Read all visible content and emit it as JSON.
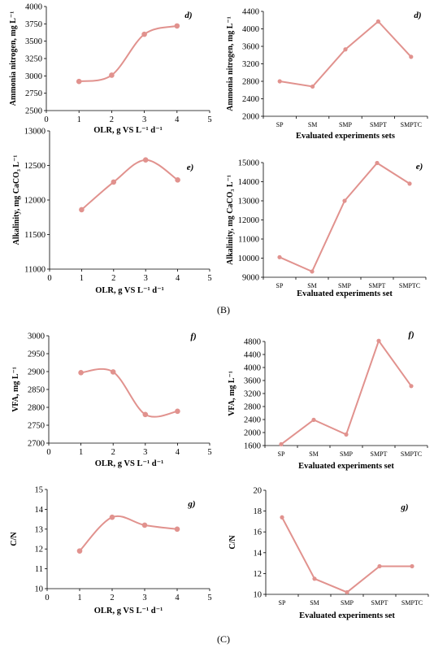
{
  "colors": {
    "series": "#e1928e",
    "axis": "#000000",
    "text": "#000000"
  },
  "section_labels": {
    "B": "(B)",
    "C": "(C)"
  },
  "chart_data": [
    {
      "id": "left-d",
      "type": "line",
      "smooth": true,
      "letter": "d)",
      "xlabel": "OLR, g VS L⁻¹ d⁻¹",
      "ylabel": "Ammonia nitrogen, mg L⁻¹",
      "x": [
        1,
        2,
        3,
        4
      ],
      "values": [
        2920,
        3010,
        3600,
        3720
      ],
      "xlim": [
        0,
        5
      ],
      "ylim": [
        2500,
        4000
      ],
      "xticks": [
        "0",
        "1",
        "2",
        "3",
        "4",
        "5"
      ],
      "yticks": [
        "2500",
        "2750",
        "3000",
        "3250",
        "3500",
        "3750",
        "4000"
      ]
    },
    {
      "id": "right-d",
      "type": "line",
      "smooth": false,
      "letter": "d)",
      "xlabel": "Evaluated experiments sets",
      "ylabel": "Ammonia nitrogen, mg L⁻¹",
      "categories": [
        "SP",
        "SM",
        "SMP",
        "SMPT",
        "SMPTC"
      ],
      "values": [
        2800,
        2680,
        3530,
        4170,
        3360
      ],
      "ylim": [
        2000,
        4400
      ],
      "yticks": [
        "2000",
        "2400",
        "2800",
        "3200",
        "3600",
        "4000",
        "4400"
      ]
    },
    {
      "id": "left-e",
      "type": "line",
      "smooth": true,
      "letter": "e)",
      "xlabel": "OLR, g VS L⁻¹ d⁻¹",
      "ylabel": "Alkalinity, mg CaCO₃ L⁻¹",
      "x": [
        1,
        2,
        3,
        4
      ],
      "values": [
        11860,
        12260,
        12580,
        12290
      ],
      "xlim": [
        0,
        5
      ],
      "ylim": [
        11000,
        13000
      ],
      "xticks": [
        "0",
        "1",
        "2",
        "3",
        "4",
        "5"
      ],
      "yticks": [
        "11000",
        "11500",
        "12000",
        "12500",
        "13000"
      ]
    },
    {
      "id": "right-e",
      "type": "line",
      "smooth": false,
      "letter": "e)",
      "xlabel": "Evaluated experiments set",
      "ylabel": "Alkalinity, mg CaCO₃ L⁻¹",
      "categories": [
        "SP",
        "SM",
        "SMP",
        "SMPT",
        "SMPTC"
      ],
      "values": [
        10050,
        9300,
        13000,
        14980,
        13900
      ],
      "ylim": [
        9000,
        15000
      ],
      "yticks": [
        "9000",
        "10000",
        "11000",
        "12000",
        "13000",
        "14000",
        "15000"
      ]
    },
    {
      "id": "left-f",
      "type": "line",
      "smooth": true,
      "letter": "f)",
      "xlabel": "OLR, g VS L⁻¹ d⁻¹",
      "ylabel": "VFA, mg L⁻¹",
      "x": [
        1,
        2,
        3,
        4
      ],
      "values": [
        2897,
        2899,
        2780,
        2789
      ],
      "xlim": [
        0,
        5
      ],
      "ylim": [
        2700,
        3000
      ],
      "xticks": [
        "0",
        "1",
        "2",
        "3",
        "4",
        "5"
      ],
      "yticks": [
        "2700",
        "2750",
        "2800",
        "2850",
        "2900",
        "2950",
        "3000"
      ]
    },
    {
      "id": "right-f",
      "type": "line",
      "smooth": false,
      "letter": "f)",
      "xlabel": "Evaluated experiments set",
      "ylabel": "VFA, mg L⁻¹",
      "categories": [
        "SP",
        "SM",
        "SMP",
        "SMPT",
        "SMPTC"
      ],
      "values": [
        1640,
        2390,
        1940,
        4820,
        3430
      ],
      "ylim": [
        1600,
        4800
      ],
      "yticks": [
        "1600",
        "2000",
        "2400",
        "2800",
        "3200",
        "3600",
        "4000",
        "4400",
        "4800"
      ]
    },
    {
      "id": "left-g",
      "type": "line",
      "smooth": true,
      "letter": "g)",
      "xlabel": "OLR, g VS L⁻¹ d⁻¹",
      "ylabel": "C/N",
      "x": [
        1,
        2,
        3,
        4
      ],
      "values": [
        11.9,
        13.6,
        13.2,
        13.0
      ],
      "xlim": [
        0,
        5
      ],
      "ylim": [
        10,
        15
      ],
      "xticks": [
        "0",
        "1",
        "2",
        "3",
        "4",
        "5"
      ],
      "yticks": [
        "10",
        "11",
        "12",
        "13",
        "14",
        "15"
      ]
    },
    {
      "id": "right-g",
      "type": "line",
      "smooth": false,
      "letter": "g)",
      "xlabel": "Evaluated experiments set",
      "ylabel": "C/N",
      "categories": [
        "SP",
        "SM",
        "SMP",
        "SMPT",
        "SMPTC"
      ],
      "values": [
        17.4,
        11.5,
        10.2,
        12.7,
        12.7
      ],
      "ylim": [
        10,
        20
      ],
      "yticks": [
        "10",
        "12",
        "14",
        "16",
        "18",
        "20"
      ]
    }
  ]
}
